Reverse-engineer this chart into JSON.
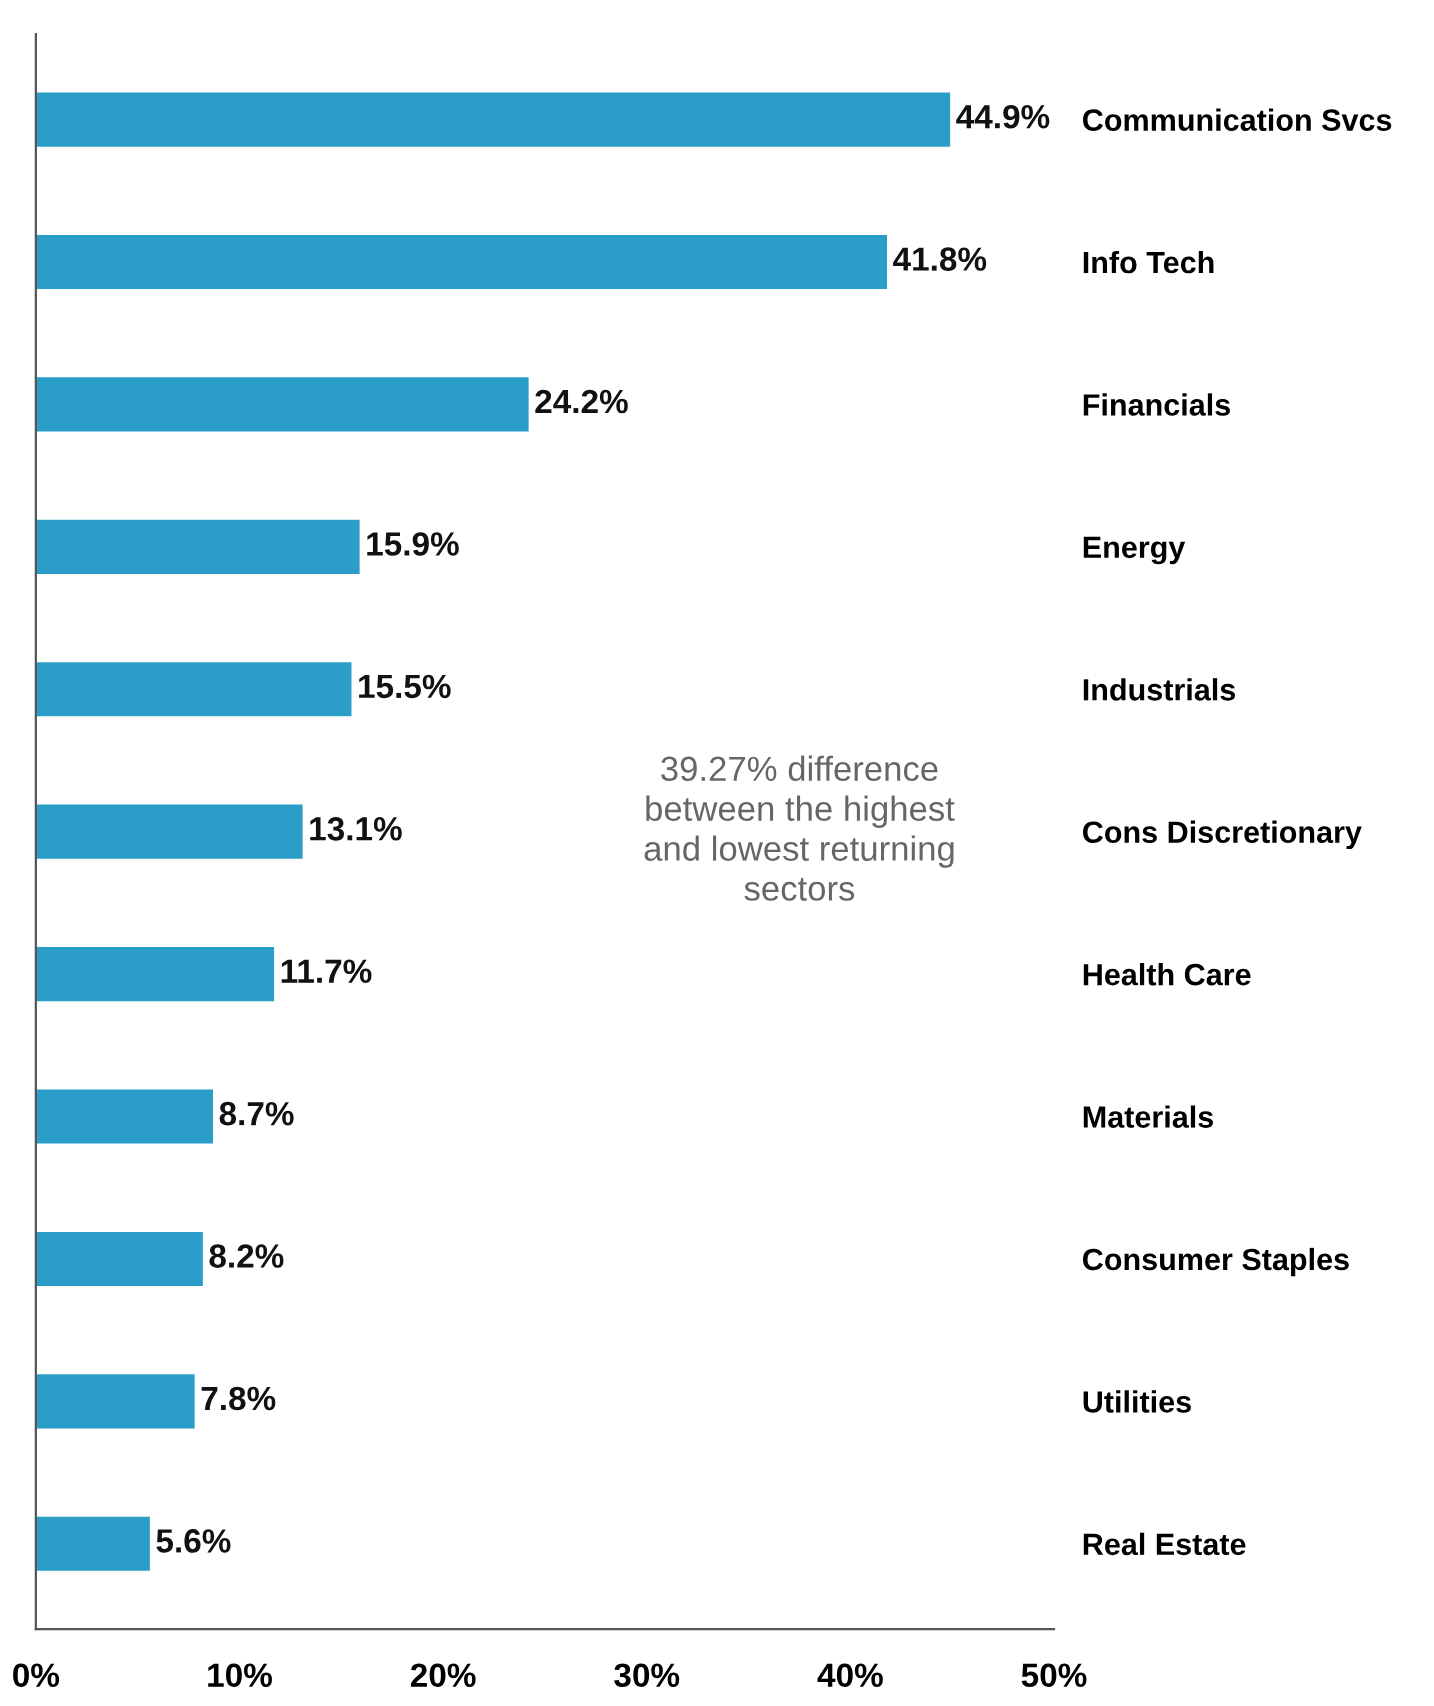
{
  "chart_data": {
    "type": "bar",
    "orientation": "horizontal",
    "categories": [
      "Communication Svcs",
      "Info Tech",
      "Financials",
      "Energy",
      "Industrials",
      "Cons Discretionary",
      "Health Care",
      "Materials",
      "Consumer Staples",
      "Utilities",
      "Real Estate"
    ],
    "values": [
      44.9,
      41.8,
      24.2,
      15.9,
      15.5,
      13.1,
      11.7,
      8.7,
      8.2,
      7.8,
      5.6
    ],
    "value_labels": [
      "44.9%",
      "41.8%",
      "24.2%",
      "15.9%",
      "15.5%",
      "13.1%",
      "11.7%",
      "8.7%",
      "8.2%",
      "7.8%",
      "5.6%"
    ],
    "color": "#2a9ec8",
    "xlim": [
      0,
      50
    ],
    "xticks": [
      {
        "value": 0,
        "label": "0%"
      },
      {
        "value": 10,
        "label": "10%"
      },
      {
        "value": 20,
        "label": "20%"
      },
      {
        "value": 30,
        "label": "30%"
      },
      {
        "value": 40,
        "label": "40%"
      },
      {
        "value": 50,
        "label": "50%"
      }
    ],
    "annotations": [
      "39.27% difference\nbetween the highest\nand lowest returning\nsectors"
    ],
    "grid": false,
    "legend": false
  }
}
